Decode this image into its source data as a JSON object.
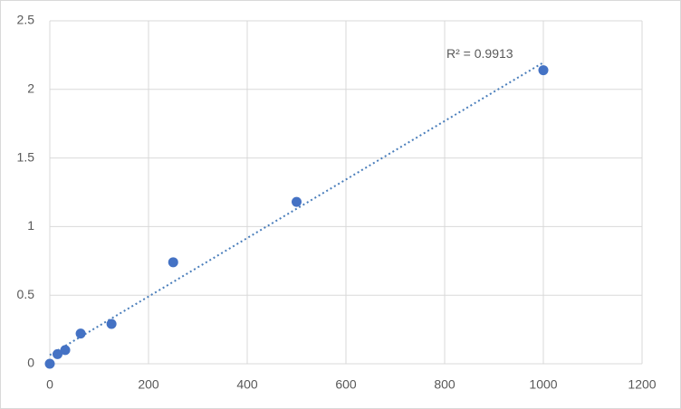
{
  "chart_data": {
    "type": "scatter",
    "series": [
      {
        "color": "#4472c4",
        "x": [
          0,
          15.6,
          31.25,
          62.5,
          125,
          250,
          500,
          1000
        ],
        "values": [
          0,
          0.07,
          0.1,
          0.22,
          0.29,
          0.74,
          1.18,
          2.14
        ]
      }
    ],
    "trendline": {
      "type": "linear",
      "label": "R² = 0.9913",
      "color": "#4a7ebb"
    },
    "xlim": [
      0,
      1200
    ],
    "xticks": [
      0,
      200,
      400,
      600,
      800,
      1000,
      1200
    ],
    "ylim": [
      0,
      2.5
    ],
    "yticks": [
      0,
      {
        "value": 0.5,
        "label": "0.5"
      },
      1,
      {
        "value": 1.5,
        "label": "1.5"
      },
      2,
      {
        "value": 2.5,
        "label": "2.5"
      }
    ],
    "grid": true
  }
}
